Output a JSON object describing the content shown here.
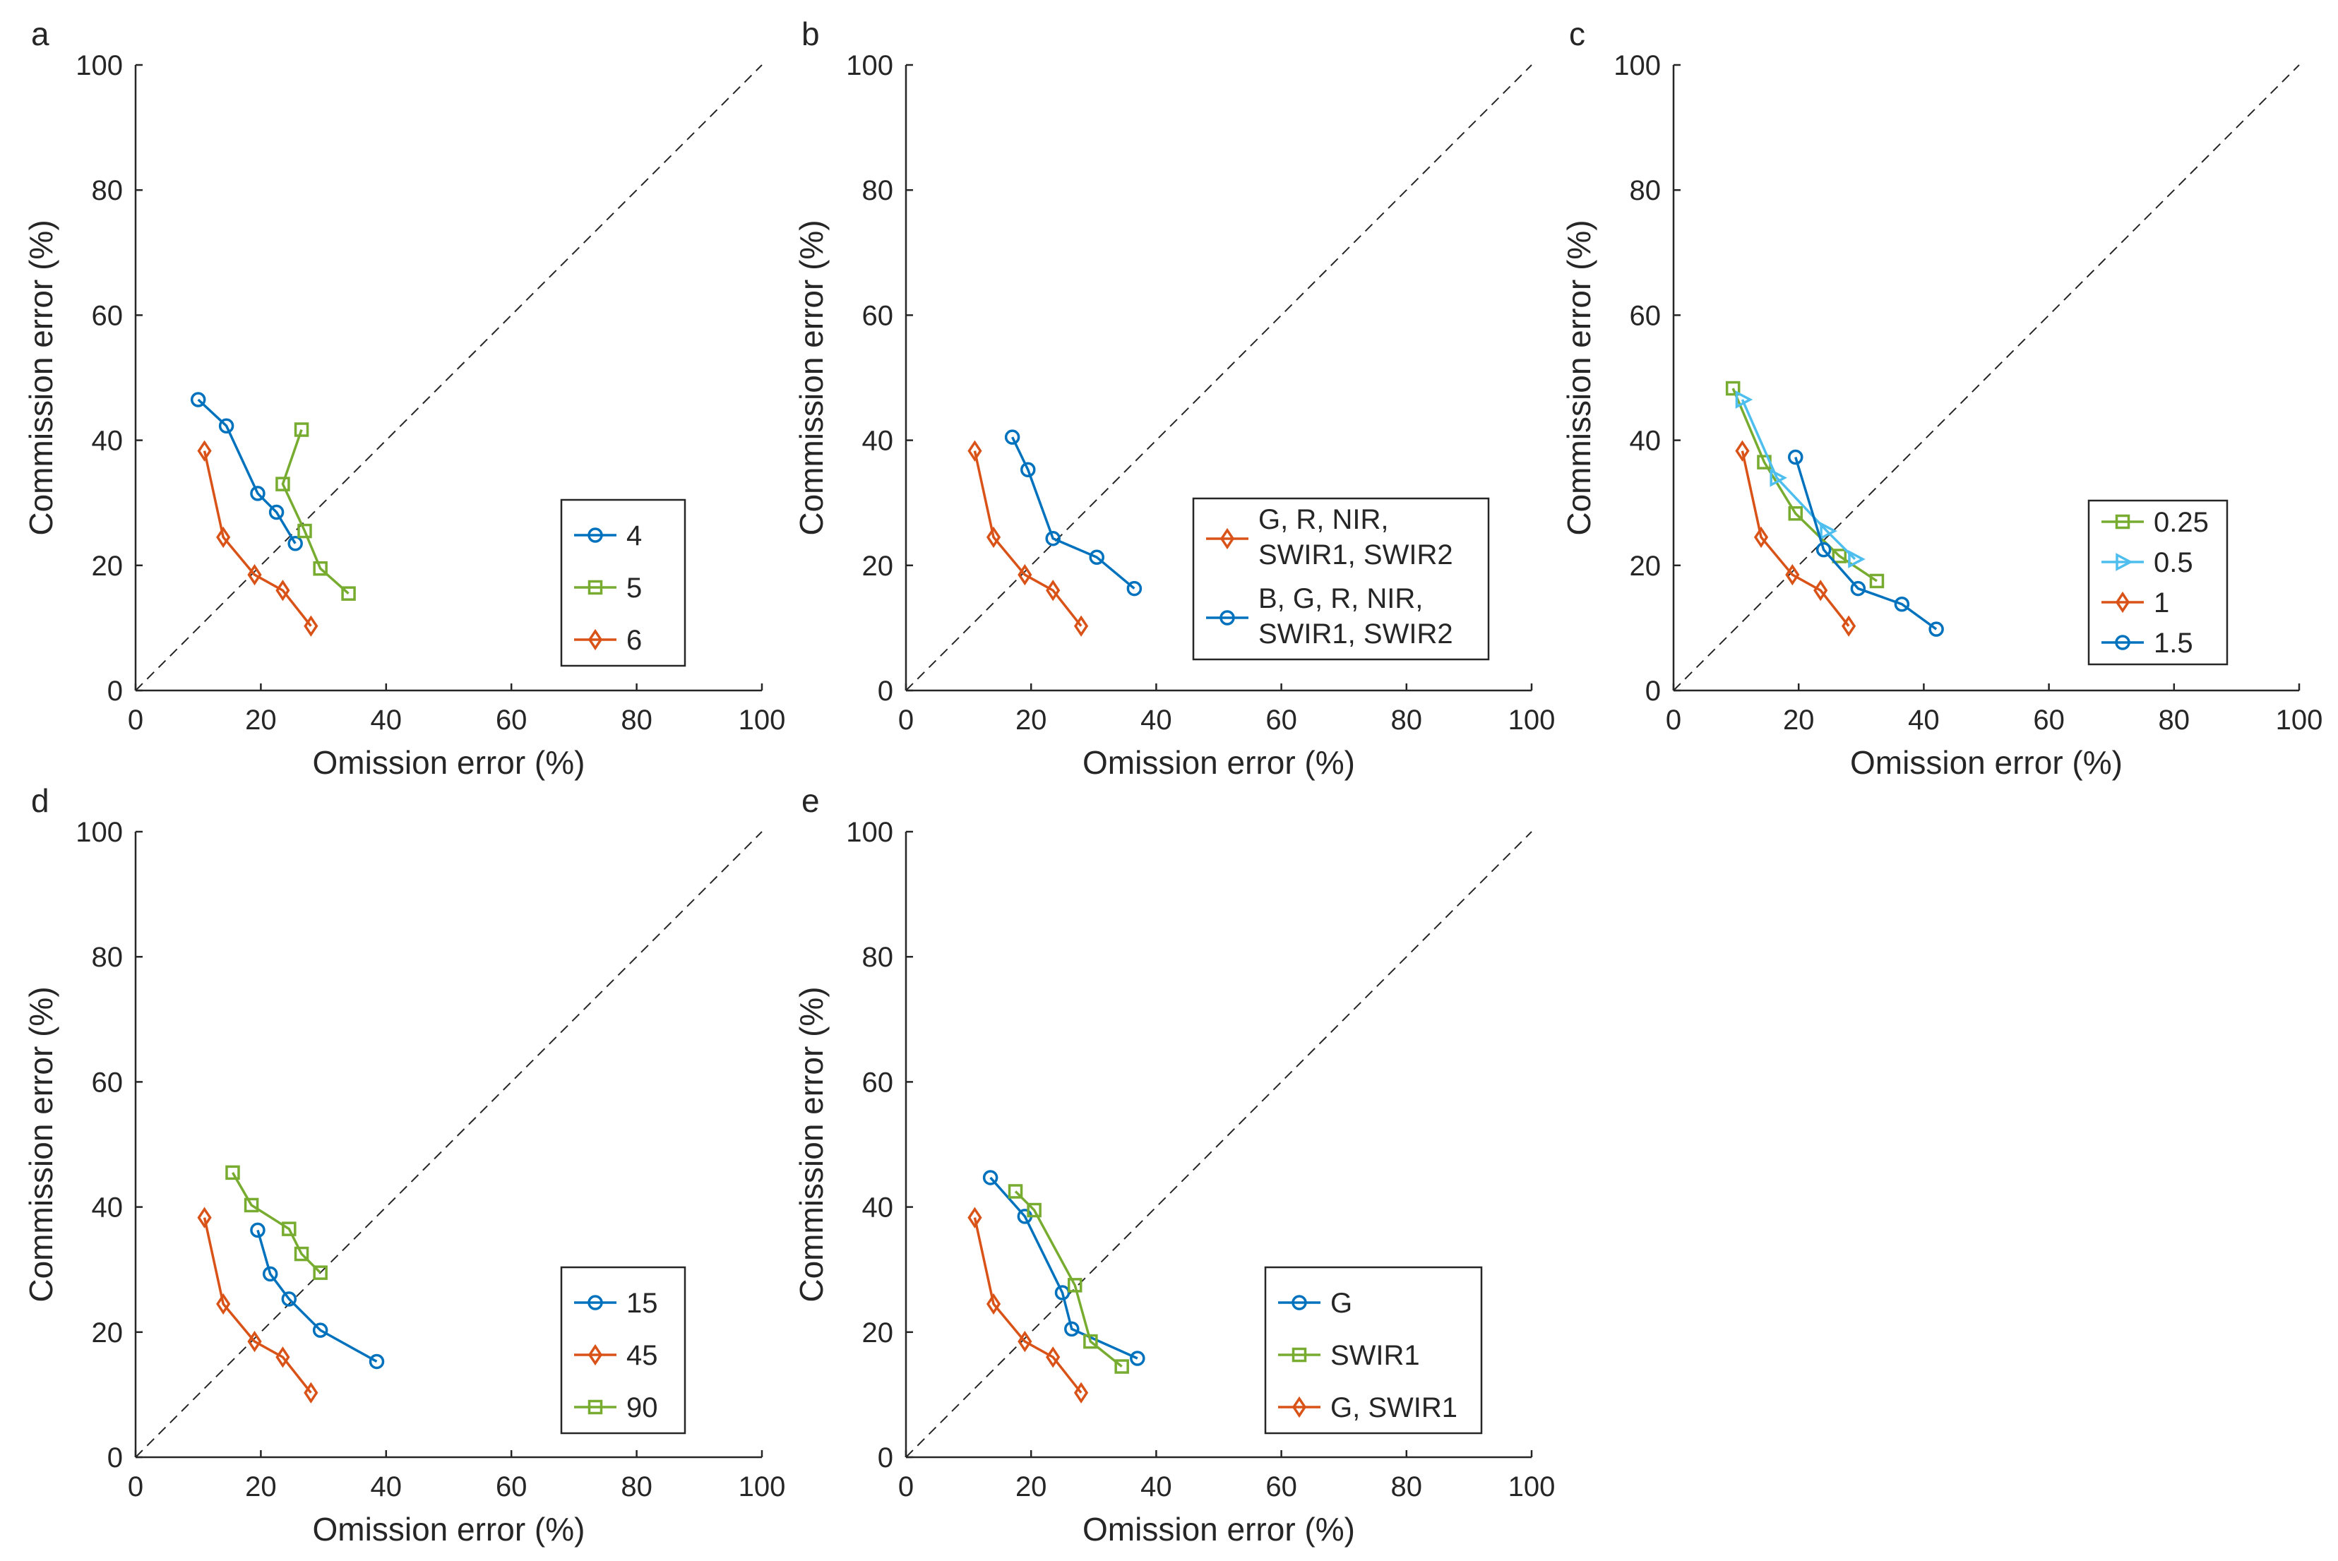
{
  "colors": {
    "blue": "#0072BD",
    "orange": "#D95319",
    "green": "#77AC30",
    "cyan": "#4DBEEE",
    "axis": "#262626",
    "diagonal": "#262626"
  },
  "chart_data": [
    {
      "panel_label": "a",
      "type": "line",
      "xlabel": "Omission error (%)",
      "ylabel": "Commission error (%)",
      "xlim": [
        0,
        100
      ],
      "ylim": [
        0,
        100
      ],
      "xticks": [
        "0",
        "20",
        "40",
        "60",
        "80",
        "100"
      ],
      "yticks": [
        "0",
        "20",
        "40",
        "60",
        "80",
        "100"
      ],
      "reference_line": "y = x (dashed)",
      "legend_position": "lower-right",
      "series": [
        {
          "name": "4",
          "color": "blue",
          "marker": "circle",
          "x": [
            10,
            14.5,
            19.5,
            22.5,
            25.5
          ],
          "y": [
            46.5,
            42.3,
            31.5,
            28.5,
            23.5
          ]
        },
        {
          "name": "5",
          "color": "green",
          "marker": "square",
          "x": [
            26.5,
            23.5,
            27,
            29.5,
            34
          ],
          "y": [
            41.7,
            33,
            25.5,
            19.5,
            15.5
          ]
        },
        {
          "name": "6",
          "color": "orange",
          "marker": "diamond",
          "x": [
            11,
            14,
            19,
            23.5,
            28
          ],
          "y": [
            38.3,
            24.5,
            18.5,
            16,
            10.3
          ]
        }
      ]
    },
    {
      "panel_label": "b",
      "type": "line",
      "xlabel": "Omission error (%)",
      "ylabel": "Commission error (%)",
      "xlim": [
        0,
        100
      ],
      "ylim": [
        0,
        100
      ],
      "xticks": [
        "0",
        "20",
        "40",
        "60",
        "80",
        "100"
      ],
      "yticks": [
        "0",
        "20",
        "40",
        "60",
        "80",
        "100"
      ],
      "reference_line": "y = x (dashed)",
      "legend_position": "lower-right",
      "series": [
        {
          "name": "G, R, NIR, SWIR1, SWIR2",
          "legend_lines": [
            "G, R, NIR,",
            "SWIR1, SWIR2"
          ],
          "color": "orange",
          "marker": "diamond",
          "x": [
            11,
            14,
            19,
            23.5,
            28
          ],
          "y": [
            38.3,
            24.5,
            18.5,
            16,
            10.3
          ]
        },
        {
          "name": "B, G, R, NIR, SWIR1, SWIR2",
          "legend_lines": [
            "B, G, R, NIR,",
            "SWIR1, SWIR2"
          ],
          "color": "blue",
          "marker": "circle",
          "x": [
            17,
            19.5,
            23.5,
            30.5,
            36.5
          ],
          "y": [
            40.5,
            35.3,
            24.3,
            21.3,
            16.3
          ]
        }
      ]
    },
    {
      "panel_label": "c",
      "type": "line",
      "xlabel": "Omission error (%)",
      "ylabel": "Commission error (%)",
      "xlim": [
        0,
        100
      ],
      "ylim": [
        0,
        100
      ],
      "xticks": [
        "0",
        "20",
        "40",
        "60",
        "80",
        "100"
      ],
      "yticks": [
        "0",
        "20",
        "40",
        "60",
        "80",
        "100"
      ],
      "reference_line": "y = x (dashed)",
      "legend_position": "lower-right",
      "series": [
        {
          "name": "0.25",
          "color": "green",
          "marker": "square",
          "x": [
            9.5,
            14.5,
            19.5,
            26.5,
            32.5
          ],
          "y": [
            48.3,
            36.5,
            28.3,
            21.5,
            17.5
          ]
        },
        {
          "name": "0.5",
          "color": "cyan",
          "marker": "triangle-right",
          "x": [
            11,
            16.5,
            24.5,
            29
          ],
          "y": [
            46.5,
            34,
            25.5,
            21
          ]
        },
        {
          "name": "1",
          "color": "orange",
          "marker": "diamond",
          "x": [
            11,
            14,
            19,
            23.5,
            28
          ],
          "y": [
            38.3,
            24.5,
            18.5,
            16,
            10.3
          ]
        },
        {
          "name": "1.5",
          "color": "blue",
          "marker": "circle",
          "x": [
            19.5,
            24,
            29.5,
            36.5,
            42
          ],
          "y": [
            37.3,
            22.5,
            16.3,
            13.8,
            9.8
          ]
        }
      ]
    },
    {
      "panel_label": "d",
      "type": "line",
      "xlabel": "Omission error (%)",
      "ylabel": "Commission error (%)",
      "xlim": [
        0,
        100
      ],
      "ylim": [
        0,
        100
      ],
      "xticks": [
        "0",
        "20",
        "40",
        "60",
        "80",
        "100"
      ],
      "yticks": [
        "0",
        "20",
        "40",
        "60",
        "80",
        "100"
      ],
      "reference_line": "y = x (dashed)",
      "legend_position": "lower-right",
      "series": [
        {
          "name": "15",
          "color": "blue",
          "marker": "circle",
          "x": [
            19.5,
            21.5,
            24.5,
            29.5,
            38.5
          ],
          "y": [
            36.3,
            29.3,
            25.3,
            20.3,
            15.3
          ]
        },
        {
          "name": "45",
          "color": "orange",
          "marker": "diamond",
          "x": [
            11,
            14,
            19,
            23.5,
            28
          ],
          "y": [
            38.3,
            24.5,
            18.5,
            16,
            10.3
          ]
        },
        {
          "name": "90",
          "color": "green",
          "marker": "square",
          "x": [
            15.5,
            18.5,
            24.5,
            26.5,
            29.5
          ],
          "y": [
            45.5,
            40.3,
            36.5,
            32.5,
            29.5
          ]
        }
      ]
    },
    {
      "panel_label": "e",
      "type": "line",
      "xlabel": "Omission error (%)",
      "ylabel": "Commission error (%)",
      "xlim": [
        0,
        100
      ],
      "ylim": [
        0,
        100
      ],
      "xticks": [
        "0",
        "20",
        "40",
        "60",
        "80",
        "100"
      ],
      "yticks": [
        "0",
        "20",
        "40",
        "60",
        "80",
        "100"
      ],
      "reference_line": "y = x (dashed)",
      "legend_position": "lower-right",
      "series": [
        {
          "name": "G",
          "color": "blue",
          "marker": "circle",
          "x": [
            13.5,
            19,
            25,
            26.5,
            37
          ],
          "y": [
            44.7,
            38.5,
            26.3,
            20.5,
            15.8
          ]
        },
        {
          "name": "SWIR1",
          "color": "green",
          "marker": "square",
          "x": [
            17.5,
            20.5,
            27,
            29.5,
            34.5
          ],
          "y": [
            42.5,
            39.5,
            27.5,
            18.5,
            14.5
          ]
        },
        {
          "name": "G, SWIR1",
          "color": "orange",
          "marker": "diamond",
          "x": [
            11,
            14,
            19,
            23.5,
            28
          ],
          "y": [
            38.3,
            24.5,
            18.5,
            16,
            10.3
          ]
        }
      ]
    }
  ]
}
